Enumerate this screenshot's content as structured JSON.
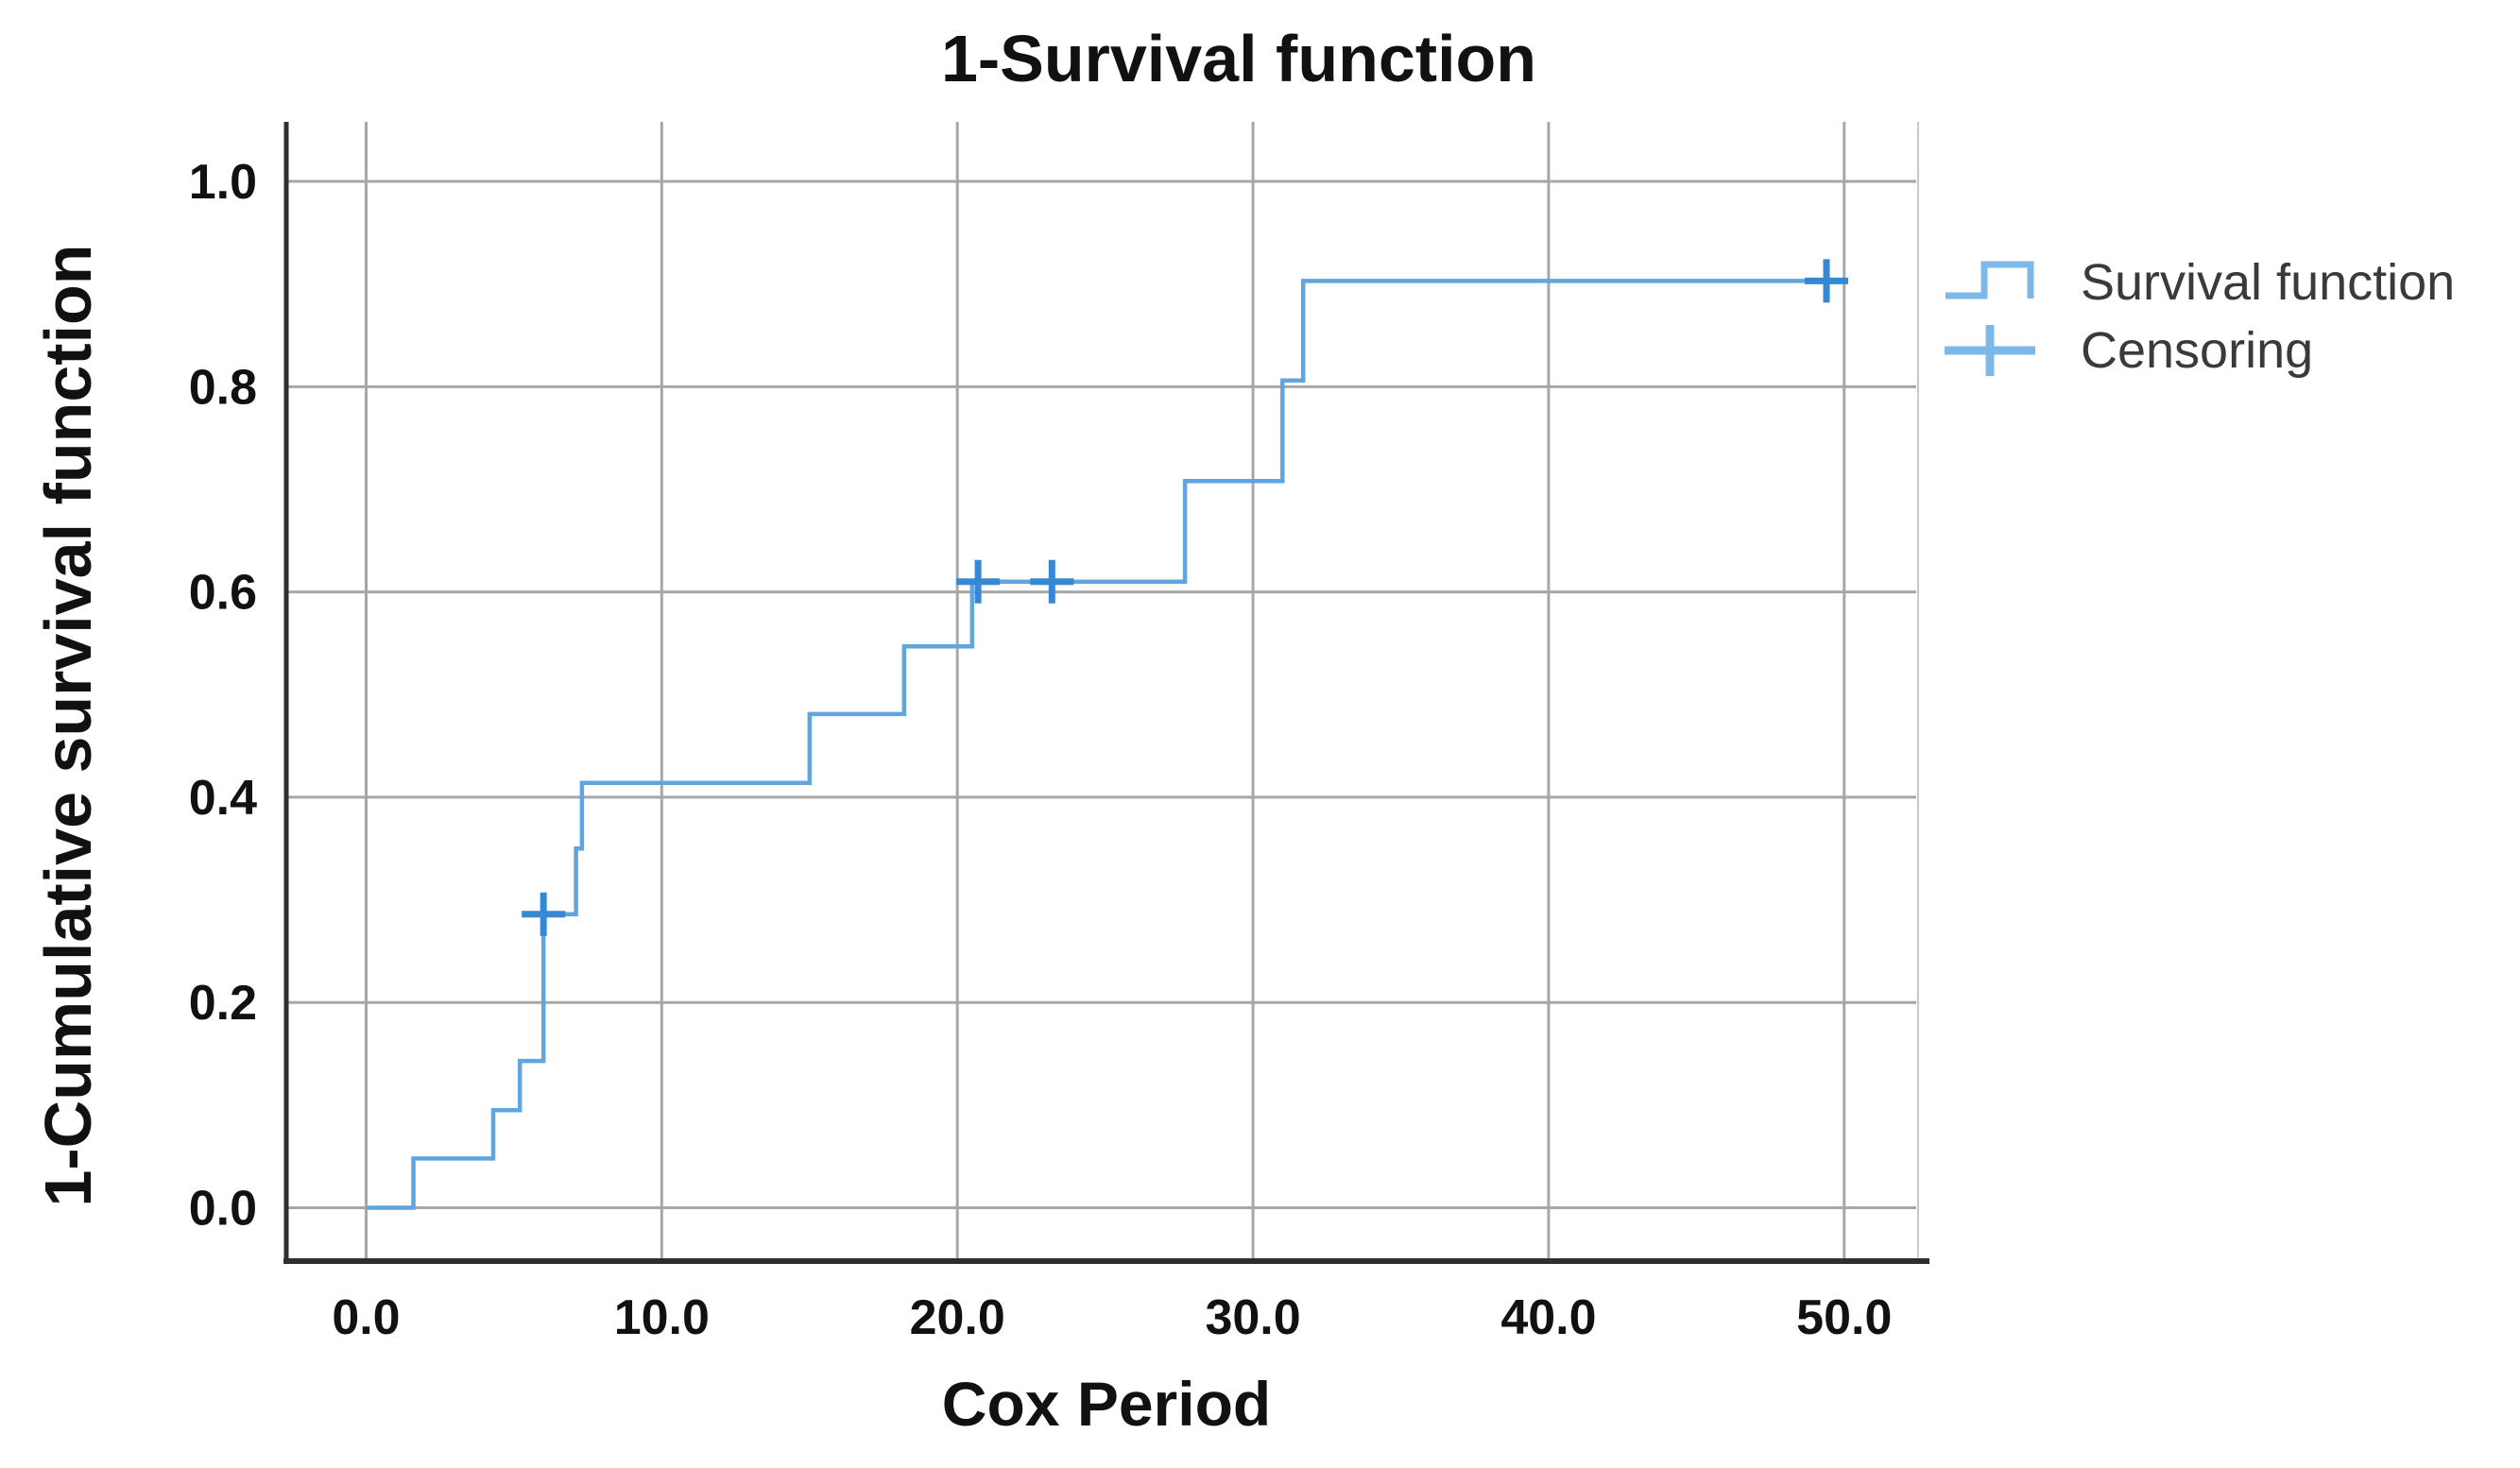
{
  "title": "1-Survival function",
  "axes": {
    "x_title": "Cox Period",
    "y_title": "1-Cumulative survival function",
    "x_tick_labels": [
      "0.0",
      "10.0",
      "20.0",
      "30.0",
      "40.0",
      "50.0"
    ],
    "y_tick_labels": [
      "0.0",
      "0.2",
      "0.4",
      "0.6",
      "0.8",
      "1.0"
    ]
  },
  "legend": {
    "items": [
      {
        "label": "Survival function",
        "icon": "step-line-icon"
      },
      {
        "label": "Censoring",
        "icon": "plus-icon"
      }
    ]
  },
  "colors": {
    "curve": "#60a5df",
    "censor": "#3688d4",
    "legend_icon": "#7db9e8",
    "gridline": "#a7a7a7",
    "right_border": "#c9c9c9",
    "axis_frame": "#2f2f2f",
    "tick_text": "#111111",
    "legend_text": "#3a3a3a",
    "background": "#ffffff"
  },
  "chart_data": {
    "type": "line",
    "subtype": "kaplan-meier-step",
    "title": "1-Survival function",
    "xlabel": "Cox Period",
    "ylabel": "1-Cumulative survival function",
    "xlim": [
      -2.7,
      52.5
    ],
    "ylim": [
      -0.052,
      1.058
    ],
    "x_ticks": [
      0,
      10,
      20,
      30,
      40,
      50
    ],
    "y_ticks": [
      0,
      0.2,
      0.4,
      0.6,
      0.8,
      1.0
    ],
    "grid": true,
    "legend_position": "right",
    "series": [
      {
        "name": "Survival function",
        "type": "step",
        "points": [
          [
            0,
            0
          ],
          [
            1.6,
            0
          ],
          [
            1.6,
            0.048
          ],
          [
            4.3,
            0.048
          ],
          [
            4.3,
            0.095
          ],
          [
            5.2,
            0.095
          ],
          [
            5.2,
            0.143
          ],
          [
            6.0,
            0.143
          ],
          [
            6.0,
            0.286
          ],
          [
            7.1,
            0.286
          ],
          [
            7.1,
            0.35
          ],
          [
            7.3,
            0.35
          ],
          [
            7.3,
            0.414
          ],
          [
            15.0,
            0.414
          ],
          [
            15.0,
            0.481
          ],
          [
            18.2,
            0.481
          ],
          [
            18.2,
            0.547
          ],
          [
            20.5,
            0.547
          ],
          [
            20.5,
            0.61
          ],
          [
            27.7,
            0.61
          ],
          [
            27.7,
            0.708
          ],
          [
            31.0,
            0.708
          ],
          [
            31.0,
            0.806
          ],
          [
            31.7,
            0.806
          ],
          [
            31.7,
            0.903
          ],
          [
            49.5,
            0.903
          ]
        ]
      },
      {
        "name": "Censoring",
        "type": "censor-marks",
        "points": [
          [
            6.0,
            0.286
          ],
          [
            20.7,
            0.61
          ],
          [
            23.2,
            0.61
          ],
          [
            49.4,
            0.903
          ]
        ]
      }
    ]
  }
}
